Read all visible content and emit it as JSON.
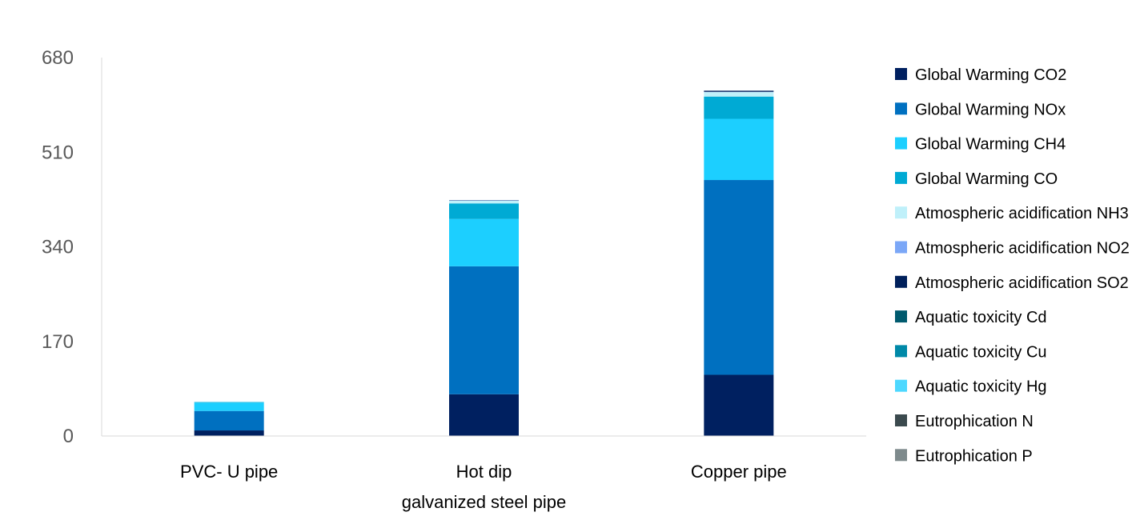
{
  "chart_data": {
    "type": "bar",
    "stacked": true,
    "categories": [
      [
        "PVC- U pipe"
      ],
      [
        "Hot  dip",
        "galvanized steel pipe"
      ],
      [
        "Copper pipe"
      ]
    ],
    "ylim": [
      0,
      680
    ],
    "yticks": [
      "680",
      "510",
      "340",
      "170",
      "0"
    ],
    "grid": false,
    "legend_position": "right",
    "series": [
      {
        "name": "Global Warming CO2",
        "color": "#002060",
        "values": [
          10,
          75,
          110
        ]
      },
      {
        "name": "Global Warming  NOx",
        "color": "#0070C0",
        "values": [
          35,
          230,
          350
        ]
      },
      {
        "name": "Global Warming CH4",
        "color": "#1CCFFF",
        "values": [
          15,
          85,
          110
        ]
      },
      {
        "name": "Global Warming  CO",
        "color": "#00AAD4",
        "values": [
          1,
          28,
          40
        ]
      },
      {
        "name": "Atmospheric acidification NH3",
        "color": "#BFF0FA",
        "values": [
          0.5,
          5,
          8
        ]
      },
      {
        "name": "Atmospheric acidification NO2",
        "color": "#7BA7F7",
        "values": [
          0,
          0.5,
          0.5
        ]
      },
      {
        "name": "Atmospheric acidification SO2",
        "color": "#00205B",
        "values": [
          0,
          0.5,
          2
        ]
      },
      {
        "name": "Aquatic toxicity Cd",
        "color": "#005A6E",
        "values": [
          0,
          0,
          0
        ]
      },
      {
        "name": "Aquatic toxicity Cu",
        "color": "#0089A8",
        "values": [
          0,
          0,
          0
        ]
      },
      {
        "name": "Aquatic toxicity Hg",
        "color": "#4DD8FF",
        "values": [
          0,
          0,
          0
        ]
      },
      {
        "name": "Eutrophication N",
        "color": "#3B4A4E",
        "values": [
          0,
          0,
          0
        ]
      },
      {
        "name": "Eutrophication P",
        "color": "#7E8A8C",
        "values": [
          0,
          0,
          0
        ]
      }
    ]
  }
}
